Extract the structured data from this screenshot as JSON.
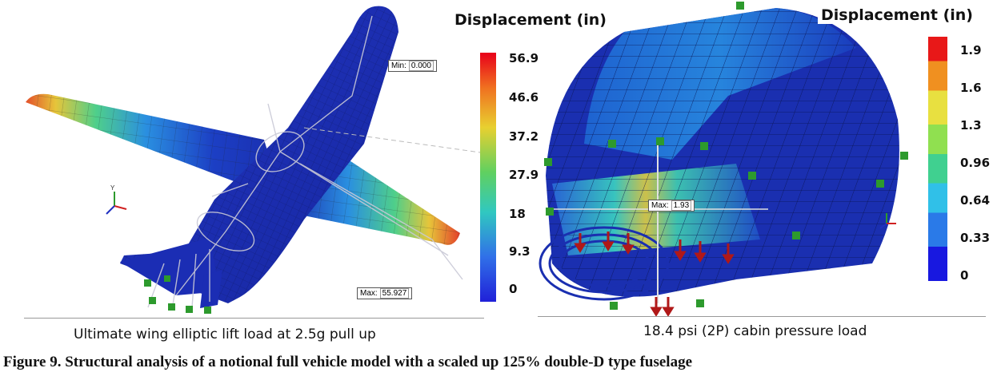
{
  "left_panel": {
    "legend_title": "Displacement (in)",
    "scale_ticks": [
      "56.9",
      "46.6",
      "37.2",
      "27.9",
      "18",
      "9.3",
      "0"
    ],
    "min_label": "Min:",
    "min_value": "0.000",
    "max_label": "Max:",
    "max_value": "55.927",
    "caption": "Ultimate wing elliptic lift load at 2.5g pull up"
  },
  "right_panel": {
    "legend_title": "Displacement (in)",
    "scale_ticks": [
      "1.9",
      "1.6",
      "1.3",
      "0.96",
      "0.64",
      "0.33",
      "0"
    ],
    "max_label": "Max:",
    "max_value": "1.93",
    "caption": "18.4 psi (2P) cabin pressure load"
  },
  "figure_caption": "Figure 9. Structural analysis of a notional full vehicle model with a scaled up 125% double-D type fuselage",
  "colors": {
    "structure_blue": "#1a2fb0",
    "hot": "#e8301a",
    "constraint_green": "#2d9a2d",
    "load_arrow": "#b01818"
  },
  "icons": [
    "axis-triad-icon",
    "constraint-glyph-icon",
    "load-arrow-icon"
  ]
}
